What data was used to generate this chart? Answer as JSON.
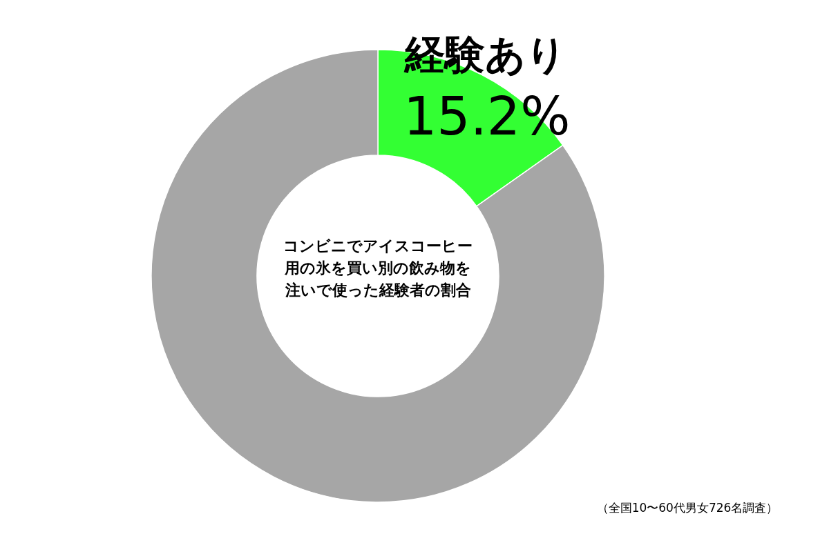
{
  "chart_data": {
    "type": "donut",
    "title": "コンビニでアイスコーヒー用の氷を買い別の飲み物を注いで使った経験者の割合",
    "categories": [
      "経験あり",
      null
    ],
    "values": [
      15.2,
      84.8
    ],
    "colors": [
      "#33ff33",
      "#a6a6a6"
    ],
    "value_labels": [
      "15.2%",
      null
    ],
    "annotations": [
      "（全国10〜60代男女726名調査）"
    ]
  }
}
